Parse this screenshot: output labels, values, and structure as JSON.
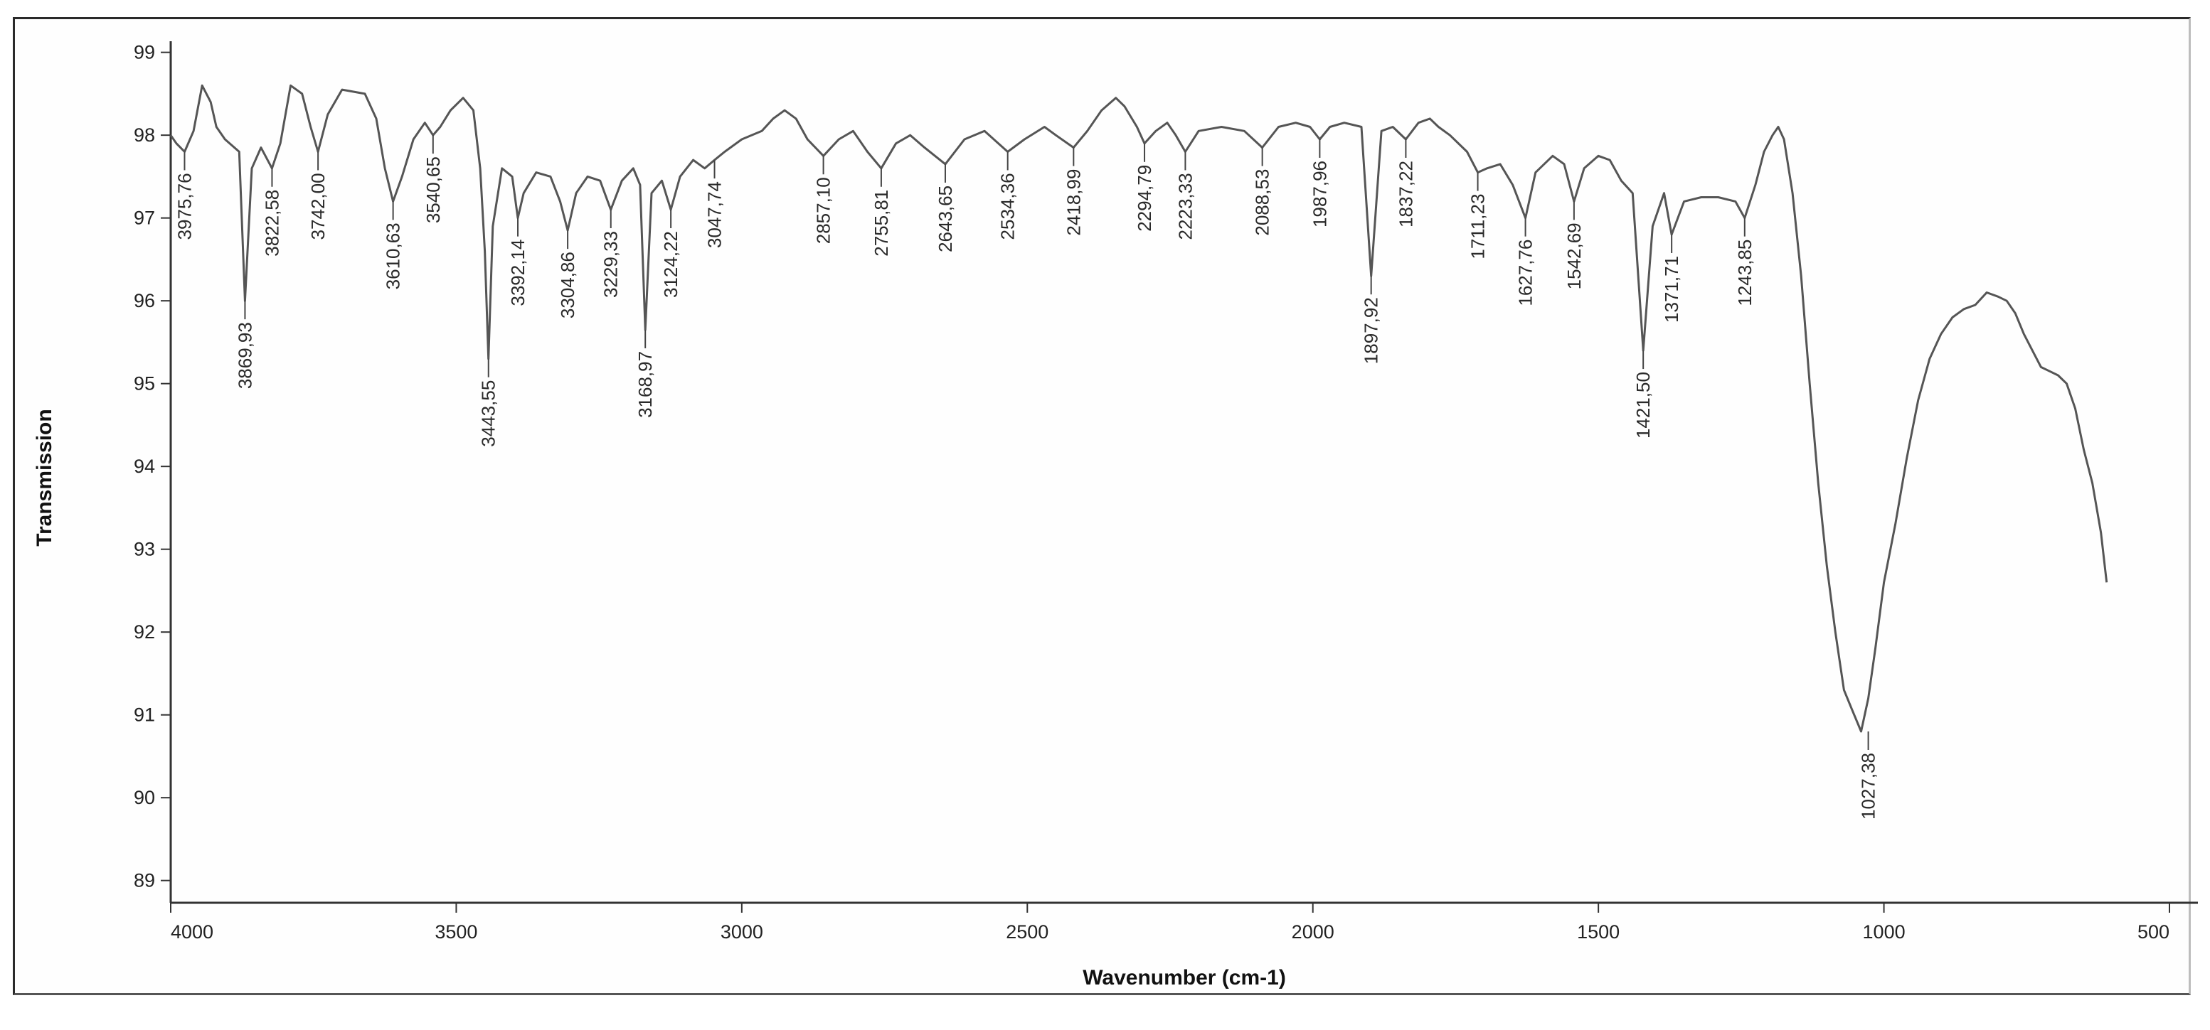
{
  "chart_data": {
    "type": "line",
    "title": "",
    "xlabel": "Wavenumber (cm-1)",
    "ylabel": "Transmission",
    "xlim": [
      4000,
      500
    ],
    "ylim": [
      88.8,
      99.1
    ],
    "x_reversed": true,
    "grid": false,
    "legend": "none",
    "line_color": "#555555",
    "x_ticks": [
      {
        "value": 4000,
        "label": "4000"
      },
      {
        "value": 3500,
        "label": "3500"
      },
      {
        "value": 3000,
        "label": "3000"
      },
      {
        "value": 2500,
        "label": "2500"
      },
      {
        "value": 2000,
        "label": "2000"
      },
      {
        "value": 1500,
        "label": "1500"
      },
      {
        "value": 1000,
        "label": "1000"
      },
      {
        "value": 500,
        "label": "500"
      }
    ],
    "y_ticks": [
      {
        "value": 99,
        "label": "99"
      },
      {
        "value": 98,
        "label": "98"
      },
      {
        "value": 97,
        "label": "97"
      },
      {
        "value": 96,
        "label": "96"
      },
      {
        "value": 95,
        "label": "95"
      },
      {
        "value": 94,
        "label": "94"
      },
      {
        "value": 93,
        "label": "93"
      },
      {
        "value": 92,
        "label": "92"
      },
      {
        "value": 91,
        "label": "91"
      },
      {
        "value": 90,
        "label": "90"
      },
      {
        "value": 89,
        "label": "89"
      }
    ],
    "series": [
      {
        "x": [
          4000,
          3990,
          3975.76,
          3960,
          3945,
          3930,
          3920,
          3905,
          3880,
          3869.93,
          3858,
          3842,
          3822.58,
          3808,
          3790,
          3770,
          3755,
          3742.0,
          3725,
          3700,
          3660,
          3640,
          3625,
          3610.63,
          3595,
          3575,
          3555,
          3540.65,
          3528,
          3510,
          3488,
          3470,
          3458,
          3450,
          3443.55,
          3436,
          3420,
          3402,
          3392.14,
          3382,
          3360,
          3335,
          3318,
          3304.86,
          3290,
          3270,
          3248,
          3229.33,
          3210,
          3190,
          3178,
          3168.97,
          3158,
          3140,
          3124.22,
          3108,
          3085,
          3065,
          3047.74,
          3030,
          3000,
          2965,
          2945,
          2925,
          2905,
          2885,
          2857.1,
          2830,
          2805,
          2780,
          2755.81,
          2730,
          2705,
          2680,
          2643.65,
          2610,
          2575,
          2534.36,
          2505,
          2470,
          2450,
          2418.99,
          2395,
          2370,
          2345,
          2330,
          2308,
          2294.79,
          2275,
          2255,
          2240,
          2223.33,
          2200,
          2160,
          2120,
          2088.53,
          2060,
          2030,
          2005,
          1987.96,
          1970,
          1945,
          1915,
          1897.92,
          1880,
          1860,
          1837.22,
          1815,
          1795,
          1780,
          1760,
          1730,
          1711.23,
          1695,
          1672,
          1650,
          1627.76,
          1610,
          1580,
          1560,
          1542.69,
          1525,
          1500,
          1480,
          1460,
          1440,
          1421.5,
          1405,
          1385,
          1371.71,
          1350,
          1320,
          1290,
          1260,
          1243.85,
          1225,
          1210,
          1195,
          1185,
          1175,
          1160,
          1145,
          1130,
          1115,
          1100,
          1085,
          1070,
          1055,
          1040,
          1027.38,
          1015,
          1000,
          980,
          960,
          940,
          920,
          900,
          880,
          860,
          840,
          820,
          800,
          785,
          770,
          755,
          740,
          725,
          710,
          695,
          680,
          665,
          650,
          635,
          620,
          610
        ],
        "y": [
          98.0,
          97.9,
          97.8,
          98.05,
          98.6,
          98.4,
          98.1,
          97.95,
          97.8,
          96.0,
          97.6,
          97.85,
          97.6,
          97.9,
          98.6,
          98.5,
          98.1,
          97.8,
          98.25,
          98.55,
          98.5,
          98.2,
          97.6,
          97.2,
          97.5,
          97.95,
          98.15,
          98.0,
          98.1,
          98.3,
          98.45,
          98.3,
          97.6,
          96.6,
          95.3,
          96.9,
          97.6,
          97.5,
          97.0,
          97.3,
          97.55,
          97.5,
          97.2,
          96.85,
          97.3,
          97.5,
          97.45,
          97.1,
          97.45,
          97.6,
          97.4,
          95.65,
          97.3,
          97.45,
          97.1,
          97.5,
          97.7,
          97.6,
          97.7,
          97.8,
          97.95,
          98.05,
          98.2,
          98.3,
          98.2,
          97.95,
          97.75,
          97.95,
          98.05,
          97.8,
          97.6,
          97.9,
          98.0,
          97.85,
          97.65,
          97.95,
          98.05,
          97.8,
          97.95,
          98.1,
          98.0,
          97.85,
          98.05,
          98.3,
          98.45,
          98.35,
          98.1,
          97.9,
          98.05,
          98.15,
          98.0,
          97.8,
          98.05,
          98.1,
          98.05,
          97.85,
          98.1,
          98.15,
          98.1,
          97.95,
          98.1,
          98.15,
          98.1,
          96.3,
          98.05,
          98.1,
          97.95,
          98.15,
          98.2,
          98.1,
          98.0,
          97.8,
          97.55,
          97.6,
          97.65,
          97.4,
          97.0,
          97.55,
          97.75,
          97.65,
          97.2,
          97.6,
          97.75,
          97.7,
          97.45,
          97.3,
          95.4,
          96.9,
          97.3,
          96.8,
          97.2,
          97.25,
          97.25,
          97.2,
          97.0,
          97.4,
          97.8,
          98.0,
          98.1,
          97.95,
          97.3,
          96.3,
          95.0,
          93.8,
          92.8,
          92.0,
          91.3,
          91.05,
          90.8,
          91.2,
          91.8,
          92.6,
          93.3,
          94.1,
          94.8,
          95.3,
          95.6,
          95.8,
          95.9,
          95.95,
          96.1,
          96.05,
          96.0,
          95.85,
          95.6,
          95.4,
          95.2,
          95.15,
          95.1,
          95.0,
          94.7,
          94.2,
          93.8,
          93.2,
          92.6
        ]
      }
    ],
    "peaks": [
      {
        "label": "3975,76",
        "x": 3975.76,
        "y": 97.8
      },
      {
        "label": "3869,93",
        "x": 3869.93,
        "y": 96.0
      },
      {
        "label": "3822,58",
        "x": 3822.58,
        "y": 97.6
      },
      {
        "label": "3742,00",
        "x": 3742.0,
        "y": 97.8
      },
      {
        "label": "3610,63",
        "x": 3610.63,
        "y": 97.2
      },
      {
        "label": "3540,65",
        "x": 3540.65,
        "y": 98.0
      },
      {
        "label": "3443,55",
        "x": 3443.55,
        "y": 95.3
      },
      {
        "label": "3392,14",
        "x": 3392.14,
        "y": 97.0
      },
      {
        "label": "3304,86",
        "x": 3304.86,
        "y": 96.85
      },
      {
        "label": "3229,33",
        "x": 3229.33,
        "y": 97.1
      },
      {
        "label": "3168,97",
        "x": 3168.97,
        "y": 95.65
      },
      {
        "label": "3124,22",
        "x": 3124.22,
        "y": 97.1
      },
      {
        "label": "3047,74",
        "x": 3047.74,
        "y": 97.7
      },
      {
        "label": "2857,10",
        "x": 2857.1,
        "y": 97.75
      },
      {
        "label": "2755,81",
        "x": 2755.81,
        "y": 97.6
      },
      {
        "label": "2643,65",
        "x": 2643.65,
        "y": 97.65
      },
      {
        "label": "2534,36",
        "x": 2534.36,
        "y": 97.8
      },
      {
        "label": "2418,99",
        "x": 2418.99,
        "y": 97.85
      },
      {
        "label": "2294,79",
        "x": 2294.79,
        "y": 97.9
      },
      {
        "label": "2223,33",
        "x": 2223.33,
        "y": 97.8
      },
      {
        "label": "2088,53",
        "x": 2088.53,
        "y": 97.85
      },
      {
        "label": "1987,96",
        "x": 1987.96,
        "y": 97.95
      },
      {
        "label": "1897,92",
        "x": 1897.92,
        "y": 96.3
      },
      {
        "label": "1837,22",
        "x": 1837.22,
        "y": 97.95
      },
      {
        "label": "1711,23",
        "x": 1711.23,
        "y": 97.55
      },
      {
        "label": "1627,76",
        "x": 1627.76,
        "y": 97.0
      },
      {
        "label": "1542,69",
        "x": 1542.69,
        "y": 97.2
      },
      {
        "label": "1421,50",
        "x": 1421.5,
        "y": 95.4
      },
      {
        "label": "1371,71",
        "x": 1371.71,
        "y": 96.8
      },
      {
        "label": "1243,85",
        "x": 1243.85,
        "y": 97.0
      },
      {
        "label": "1027,38",
        "x": 1027.38,
        "y": 90.8
      }
    ]
  }
}
